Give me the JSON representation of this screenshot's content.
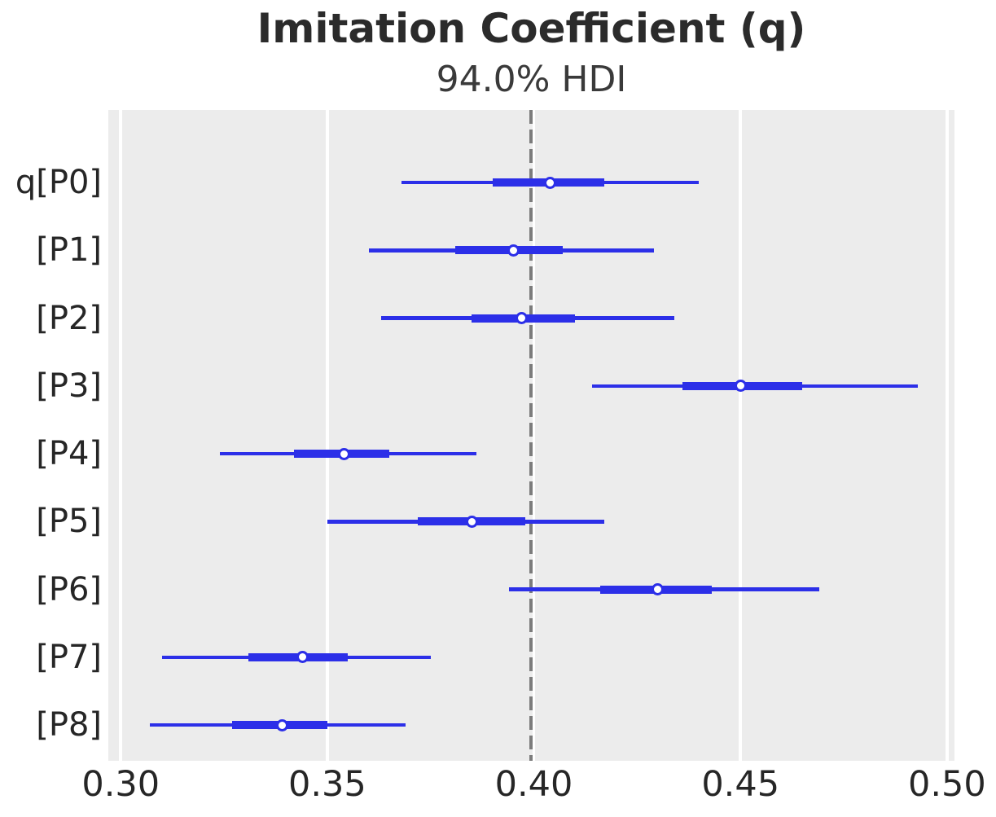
{
  "figure": {
    "title": "Imitation Coefficient (q)",
    "subtitle": "94.0% HDI"
  },
  "chart_data": {
    "type": "forest",
    "title": "Imitation Coefficient (q)",
    "subtitle": "94.0% HDI",
    "hdi_probability": "94.0%",
    "orientation": "horizontal",
    "xlim": [
      0.297,
      0.5018
    ],
    "x_ticks": [
      0.3,
      0.35,
      0.4,
      0.45,
      0.5
    ],
    "x_tick_labels": [
      "0.30",
      "0.35",
      "0.40",
      "0.45",
      "0.50"
    ],
    "reference_line_x": 0.4,
    "grid": true,
    "legend": false,
    "rows": [
      {
        "label": "q[P0]",
        "hdi": [
          0.368,
          0.44
        ],
        "quartile": [
          0.39,
          0.417
        ],
        "median": 0.404
      },
      {
        "label": "[P1]",
        "hdi": [
          0.36,
          0.429
        ],
        "quartile": [
          0.381,
          0.407
        ],
        "median": 0.395
      },
      {
        "label": "[P2]",
        "hdi": [
          0.363,
          0.434
        ],
        "quartile": [
          0.385,
          0.41
        ],
        "median": 0.397
      },
      {
        "label": "[P3]",
        "hdi": [
          0.414,
          0.493
        ],
        "quartile": [
          0.436,
          0.465
        ],
        "median": 0.45
      },
      {
        "label": "[P4]",
        "hdi": [
          0.324,
          0.386
        ],
        "quartile": [
          0.342,
          0.365
        ],
        "median": 0.354
      },
      {
        "label": "[P5]",
        "hdi": [
          0.35,
          0.417
        ],
        "quartile": [
          0.372,
          0.398
        ],
        "median": 0.385
      },
      {
        "label": "[P6]",
        "hdi": [
          0.394,
          0.469
        ],
        "quartile": [
          0.416,
          0.443
        ],
        "median": 0.43
      },
      {
        "label": "[P7]",
        "hdi": [
          0.31,
          0.375
        ],
        "quartile": [
          0.331,
          0.355
        ],
        "median": 0.344
      },
      {
        "label": "[P8]",
        "hdi": [
          0.307,
          0.369
        ],
        "quartile": [
          0.327,
          0.35
        ],
        "median": 0.339
      }
    ],
    "colors": {
      "interval": "#2c2fe8",
      "marker_fill": "#ffffff",
      "marker_edge": "#2c2fe8",
      "plot_background": "#ececec",
      "gridline": "#ffffff",
      "reference_line": "#7c7c7c",
      "text": "#262626",
      "title_text": "#2b2b2b"
    }
  }
}
